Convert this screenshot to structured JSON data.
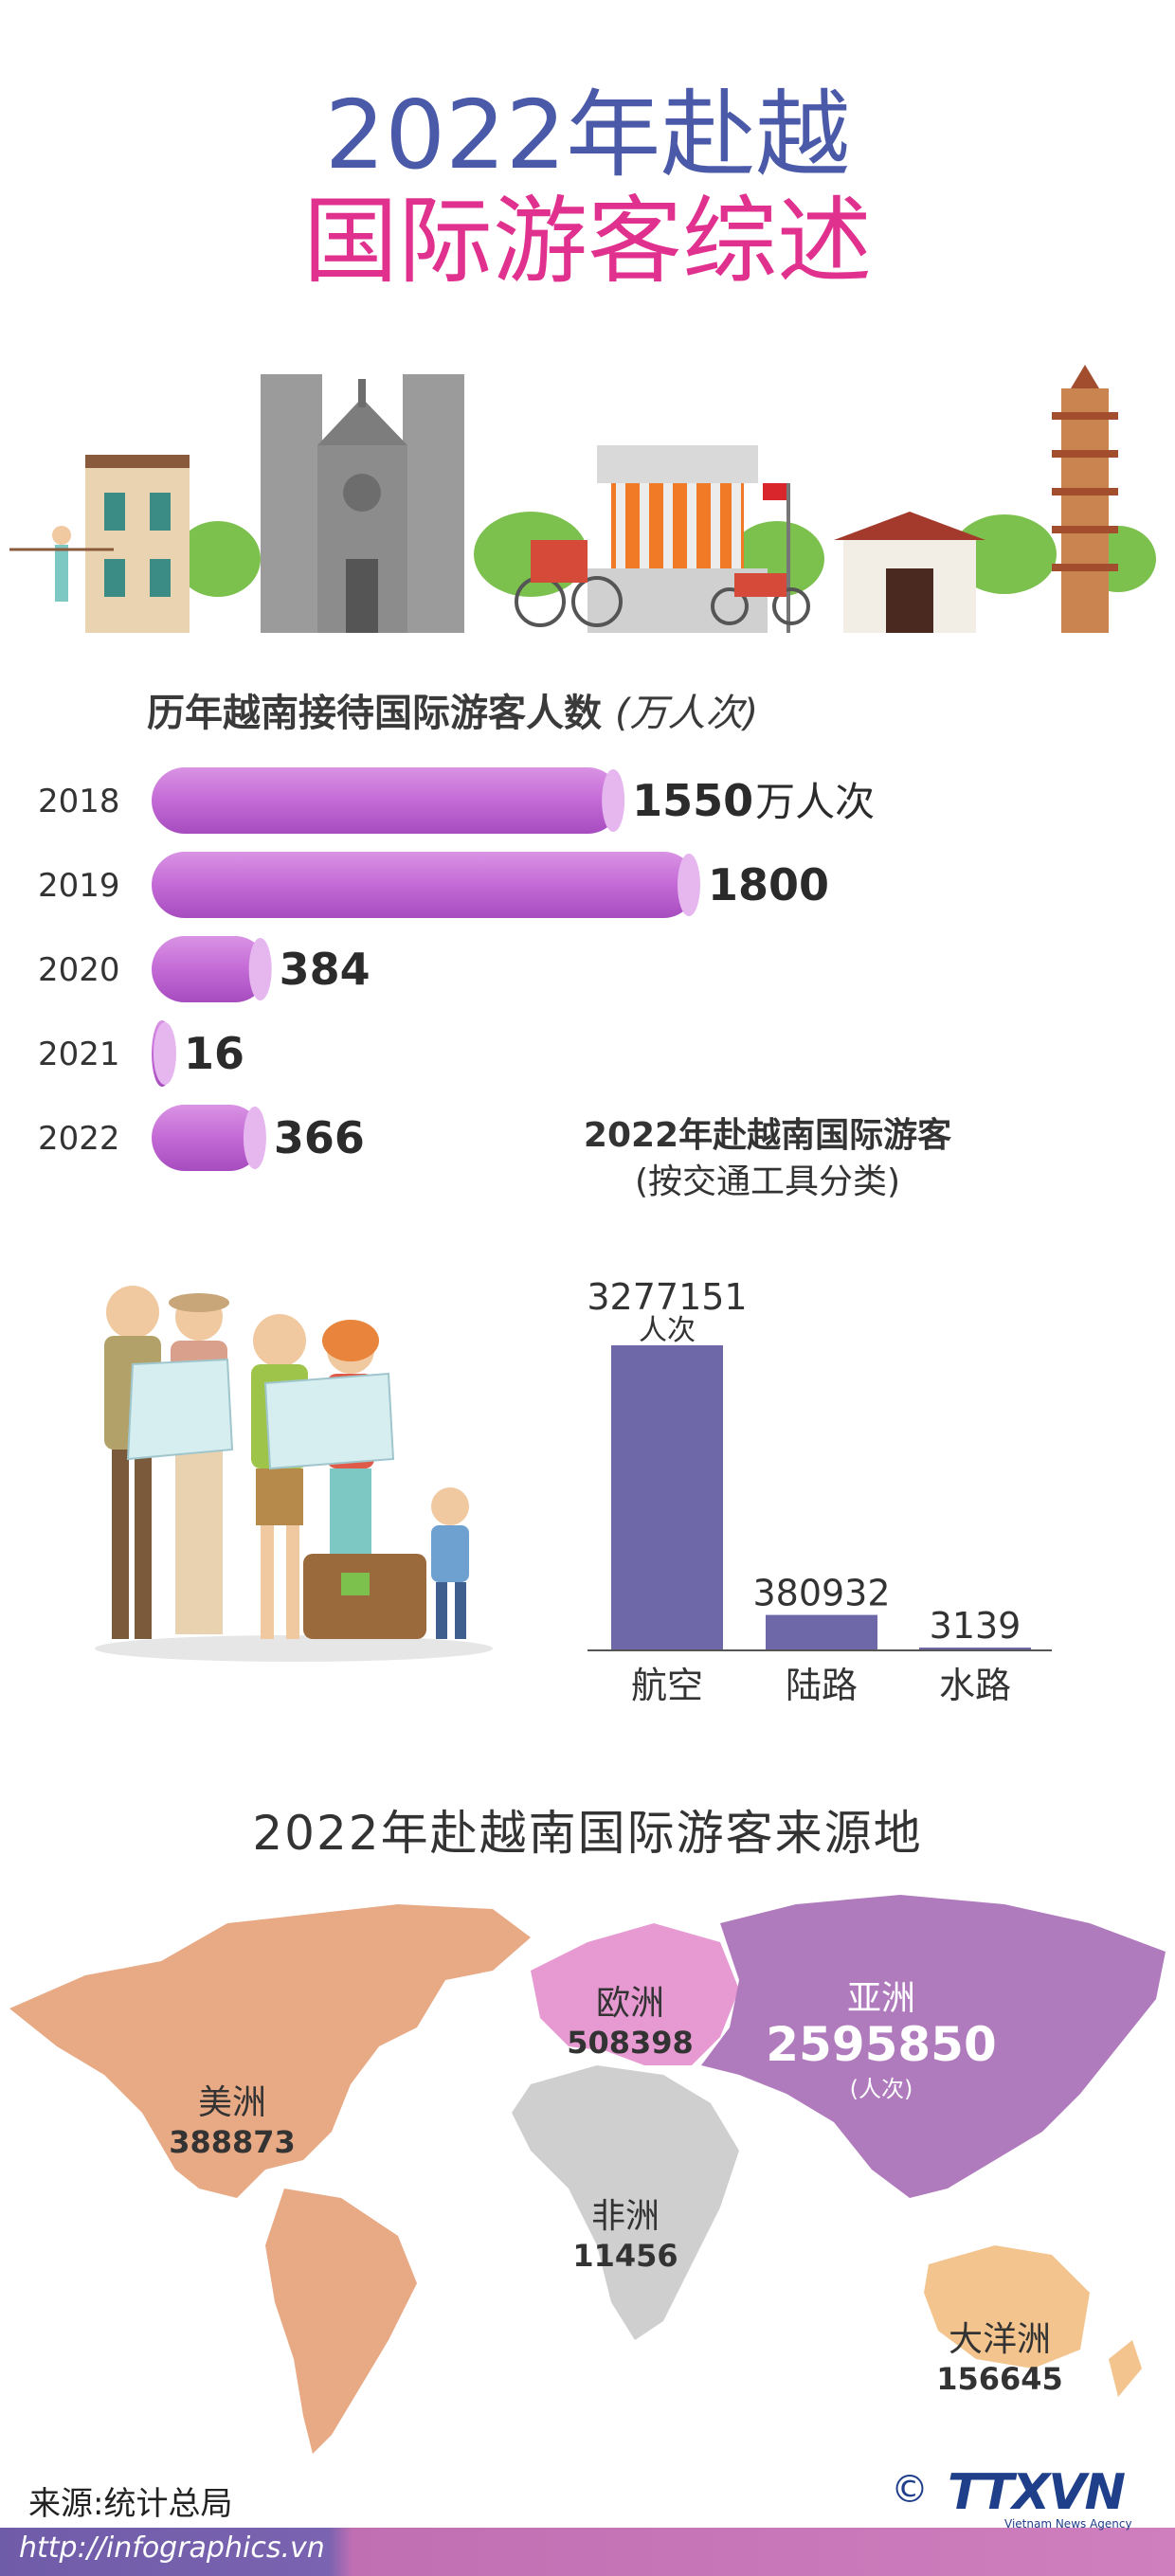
{
  "header": {
    "title_line1": "2022年赴越",
    "title_line2": "国际游客综述"
  },
  "yearly": {
    "title": "历年越南接待国际游客人数",
    "unit": "(万人次)",
    "first_unit_suffix": "万人次",
    "colors": {
      "bar": "#c46ad6",
      "bar_cap": "#e6b7ef"
    },
    "rows": [
      {
        "year": "2018",
        "value": 1550,
        "label": "1550"
      },
      {
        "year": "2019",
        "value": 1800,
        "label": "1800"
      },
      {
        "year": "2020",
        "value": 384,
        "label": "384"
      },
      {
        "year": "2021",
        "value": 16,
        "label": "16"
      },
      {
        "year": "2022",
        "value": 366,
        "label": "366"
      }
    ]
  },
  "transport": {
    "title_line1": "2022年赴越南国际游客",
    "title_line2": "(按交通工具分类)",
    "unit": "人次",
    "color": "#6f68a8",
    "items": [
      {
        "label": "航空",
        "value": 3277151,
        "label_value": "3277151"
      },
      {
        "label": "陆路",
        "value": 380932,
        "label_value": "380932"
      },
      {
        "label": "水路",
        "value": 3139,
        "label_value": "3139"
      }
    ]
  },
  "regions": {
    "title": "2022年赴越南国际游客来源地",
    "unit": "(人次)",
    "items": [
      {
        "key": "america",
        "name": "美洲",
        "value": "388873",
        "color": "#e8a985"
      },
      {
        "key": "europe",
        "name": "欧洲",
        "value": "508398",
        "color": "#e79ad2"
      },
      {
        "key": "asia",
        "name": "亚洲",
        "value": "2595850",
        "color": "#b07bbd"
      },
      {
        "key": "africa",
        "name": "非洲",
        "value": "11456",
        "color": "#cfcfcf"
      },
      {
        "key": "oceania",
        "name": "大洋洲",
        "value": "156645",
        "color": "#f3c48e"
      }
    ]
  },
  "footer": {
    "source": "来源:统计总局",
    "url": "http://infographics.vn",
    "logo": "TTXVN",
    "logo_sub": "Vietnam News Agency",
    "copyright": "©"
  }
}
